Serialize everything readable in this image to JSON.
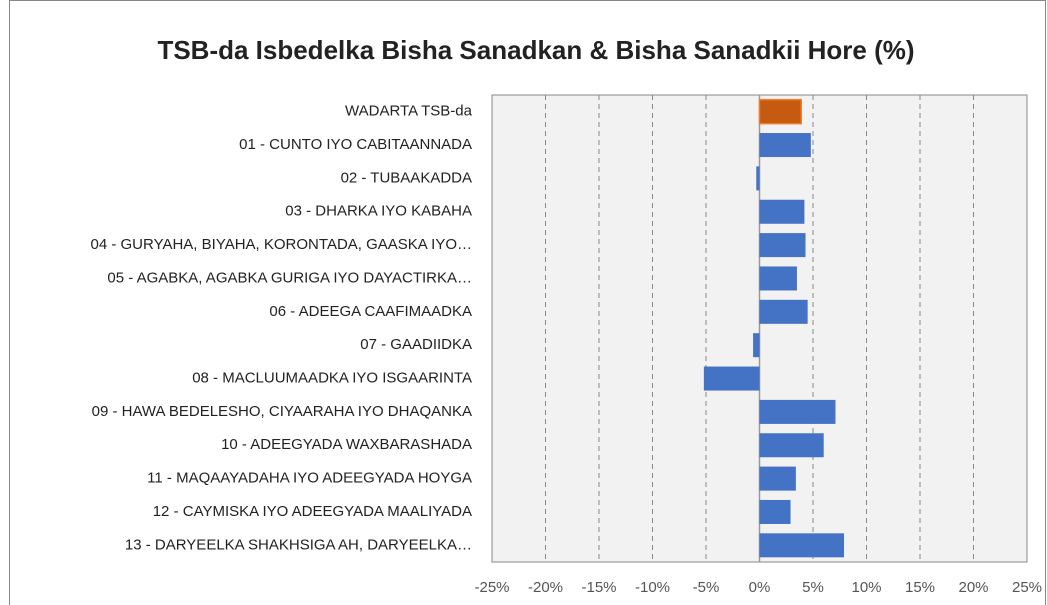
{
  "chart_data": {
    "type": "bar",
    "orientation": "horizontal",
    "title": "TSB-da Isbedelka Bisha Sanadkan & Bisha Sanadkii Hore (%)",
    "categories": [
      "WADARTA TSB-da",
      "01 - CUNTO IYO CABITAANNADA",
      "02 - TUBAAKADDA",
      "03 - DHARKA IYO KABAHA",
      "04 - GURYAHA, BIYAHA, KORONTADA, GAASKA IYO…",
      "05 - AGABKA, AGABKA GURIGA IYO DAYACTIRKA…",
      "06 - ADEEGA CAAFIMAADKA",
      "07 - GAADIIDKA",
      "08 - MACLUUMAADKA IYO ISGAARINTA",
      "09 - HAWA BEDELESHO, CIYAARAHA IYO DHAQANKA",
      "10 - ADEEGYADA WAXBARASHADA",
      "11 - MAQAAYADAHA IYO ADEEGYADA HOYGA",
      "12 - CAYMISKA IYO ADEEGYADA MAALIYADA",
      "13 - DARYEELKA SHAKHSIGA AH, DARYEELKA…"
    ],
    "values": [
      3.9,
      4.8,
      -0.3,
      4.2,
      4.3,
      3.5,
      4.5,
      -0.6,
      -5.2,
      7.1,
      6.0,
      3.4,
      2.9,
      7.9
    ],
    "colors": [
      "#c55a11",
      "#4472c4",
      "#4472c4",
      "#4472c4",
      "#4472c4",
      "#4472c4",
      "#4472c4",
      "#4472c4",
      "#4472c4",
      "#4472c4",
      "#4472c4",
      "#4472c4",
      "#4472c4",
      "#4472c4"
    ],
    "xlim": [
      -25,
      25
    ],
    "xticks": [
      {
        "value": -25,
        "label": "-25%"
      },
      {
        "value": -20,
        "label": "-20%"
      },
      {
        "value": -15,
        "label": "-15%"
      },
      {
        "value": -10,
        "label": "-10%"
      },
      {
        "value": -5,
        "label": "-5%"
      },
      {
        "value": 0,
        "label": "0%"
      },
      {
        "value": 5,
        "label": "5%"
      },
      {
        "value": 10,
        "label": "10%"
      },
      {
        "value": 15,
        "label": "15%"
      },
      {
        "value": 20,
        "label": "20%"
      },
      {
        "value": 25,
        "label": "25%"
      }
    ],
    "grid": true
  }
}
